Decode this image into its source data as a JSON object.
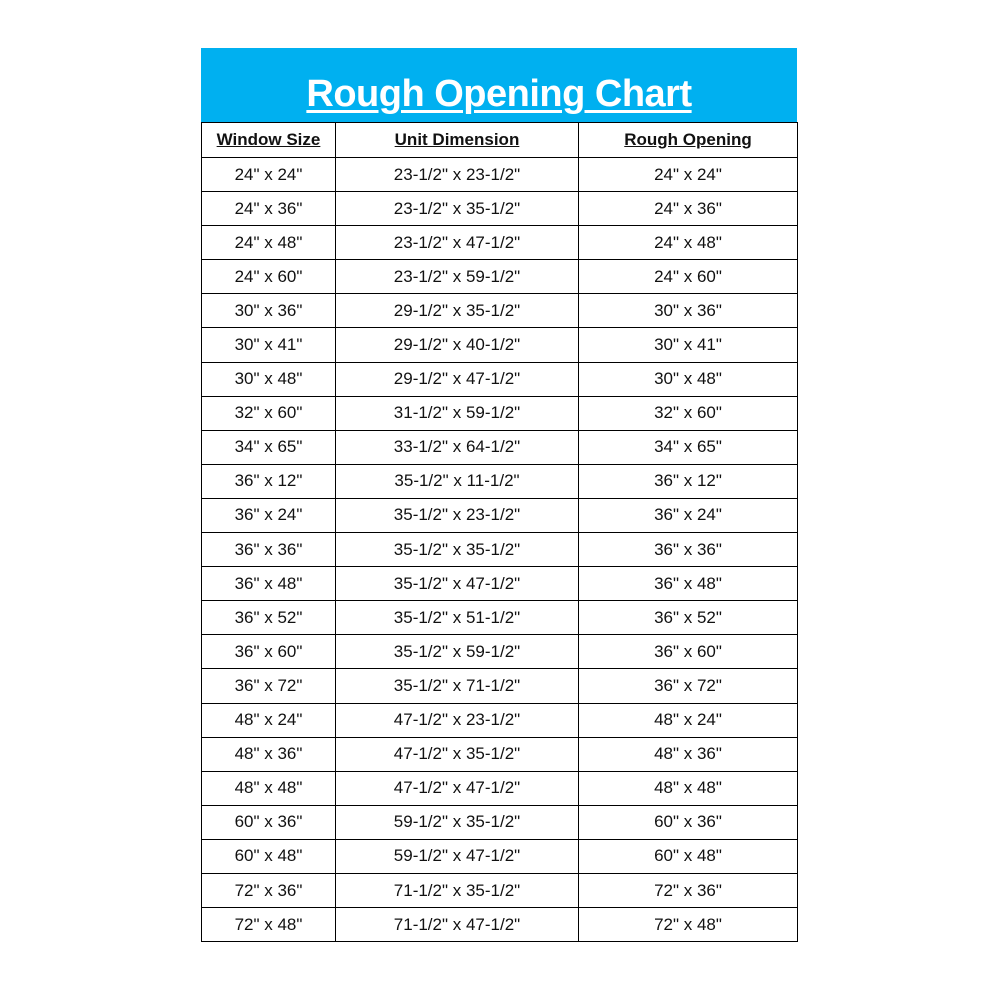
{
  "title": "Rough Opening Chart",
  "colors": {
    "header_bg": "#00B0F0",
    "title_text": "#FFFFFF"
  },
  "columns": [
    "Window Size",
    "Unit Dimension",
    "Rough Opening"
  ],
  "rows": [
    [
      "24\" x 24\"",
      "23-1/2\" x 23-1/2\"",
      "24\" x 24\""
    ],
    [
      "24\" x 36\"",
      "23-1/2\" x 35-1/2\"",
      "24\" x 36\""
    ],
    [
      "24\" x 48\"",
      "23-1/2\" x 47-1/2\"",
      "24\" x 48\""
    ],
    [
      "24\" x 60\"",
      "23-1/2\" x 59-1/2\"",
      "24\" x 60\""
    ],
    [
      "30\" x 36\"",
      "29-1/2\" x 35-1/2\"",
      "30\" x 36\""
    ],
    [
      "30\" x 41\"",
      "29-1/2\" x 40-1/2\"",
      "30\" x 41\""
    ],
    [
      "30\" x 48\"",
      "29-1/2\" x 47-1/2\"",
      "30\" x 48\""
    ],
    [
      "32\" x 60\"",
      "31-1/2\" x 59-1/2\"",
      "32\" x 60\""
    ],
    [
      "34\" x 65\"",
      "33-1/2\" x 64-1/2\"",
      "34\" x 65\""
    ],
    [
      "36\" x 12\"",
      "35-1/2\" x 11-1/2\"",
      "36\" x 12\""
    ],
    [
      "36\" x 24\"",
      "35-1/2\" x 23-1/2\"",
      "36\" x 24\""
    ],
    [
      "36\" x 36\"",
      "35-1/2\" x 35-1/2\"",
      "36\" x 36\""
    ],
    [
      "36\" x 48\"",
      "35-1/2\" x 47-1/2\"",
      "36\" x 48\""
    ],
    [
      "36\" x 52\"",
      "35-1/2\" x 51-1/2\"",
      "36\" x 52\""
    ],
    [
      "36\" x 60\"",
      "35-1/2\" x 59-1/2\"",
      "36\" x 60\""
    ],
    [
      "36\" x 72\"",
      "35-1/2\" x 71-1/2\"",
      "36\" x 72\""
    ],
    [
      "48\" x 24\"",
      "47-1/2\" x 23-1/2\"",
      "48\" x 24\""
    ],
    [
      "48\" x 36\"",
      "47-1/2\" x 35-1/2\"",
      "48\" x 36\""
    ],
    [
      "48\" x 48\"",
      "47-1/2\" x 47-1/2\"",
      "48\" x 48\""
    ],
    [
      "60\" x 36\"",
      "59-1/2\" x 35-1/2\"",
      "60\" x 36\""
    ],
    [
      "60\" x 48\"",
      "59-1/2\" x 47-1/2\"",
      "60\" x 48\""
    ],
    [
      "72\" x 36\"",
      "71-1/2\" x 35-1/2\"",
      "72\" x 36\""
    ],
    [
      "72\" x 48\"",
      "71-1/2\" x 47-1/2\"",
      "72\" x 48\""
    ]
  ]
}
